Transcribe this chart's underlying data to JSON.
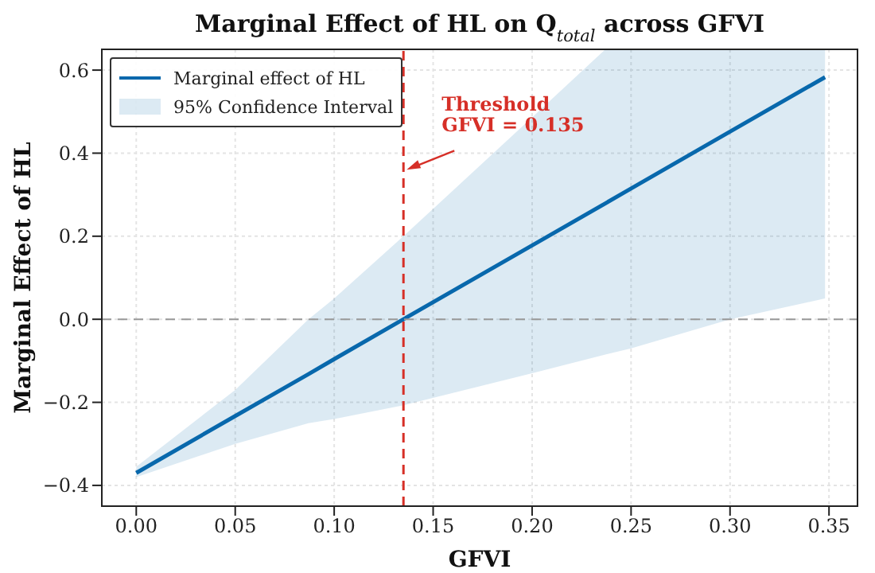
{
  "chart_data": {
    "type": "line",
    "title": "Marginal Effect of HL on Q$_{total}$ across GFVI",
    "xlabel": "GFVI",
    "ylabel": "Marginal Effect of HL",
    "x": [
      0,
      0.05,
      0.087,
      0.1,
      0.135,
      0.2,
      0.237,
      0.25,
      0.3,
      0.348
    ],
    "series": [
      {
        "name": "Marginal effect of HL",
        "color": "#0868ac",
        "values": [
          -0.37,
          -0.233,
          -0.132,
          -0.096,
          0,
          0.178,
          0.279,
          0.315,
          0.452,
          0.583
        ],
        "lower": [
          -0.38,
          -0.3,
          -0.25,
          -0.24,
          -0.207,
          -0.13,
          -0.085,
          -0.07,
          0,
          0.05
        ],
        "upper": [
          -0.355,
          -0.17,
          0,
          0.05,
          0.2,
          0.486,
          0.65,
          0.65,
          0.65,
          0.65
        ]
      }
    ],
    "xlim": [
      -0.0174,
      0.3644
    ],
    "ylim": [
      -0.45,
      0.65
    ],
    "xticks": [
      {
        "value": 0,
        "label": "0.00"
      },
      {
        "value": 0.05,
        "label": "0.05"
      },
      {
        "value": 0.1,
        "label": "0.10"
      },
      {
        "value": 0.15,
        "label": "0.15"
      },
      {
        "value": 0.2,
        "label": "0.20"
      },
      {
        "value": 0.25,
        "label": "0.25"
      },
      {
        "value": 0.3,
        "label": "0.30"
      },
      {
        "value": 0.35,
        "label": "0.35"
      }
    ],
    "yticks": [
      {
        "value": -0.4,
        "label": "−0.4"
      },
      {
        "value": -0.2,
        "label": "−0.2"
      },
      {
        "value": 0,
        "label": "0.0"
      },
      {
        "value": 0.2,
        "label": "0.2"
      },
      {
        "value": 0.4,
        "label": "0.4"
      },
      {
        "value": 0.6,
        "label": "0.6"
      }
    ],
    "ref_lines": [
      {
        "axis": "x",
        "value": 0.135,
        "color": "#d62f27",
        "line_style": "dashed"
      },
      {
        "axis": "y",
        "value": 0,
        "color": "#999999",
        "line_style": "dashed"
      }
    ],
    "annotations": [
      {
        "text": "Threshold\nGFVI = 0.135",
        "x": 0.135,
        "y": 0.36
      },
      "95% Confidence Interval"
    ],
    "grid": true,
    "legend": "top left",
    "line_style": "solid",
    "marker": "none"
  }
}
